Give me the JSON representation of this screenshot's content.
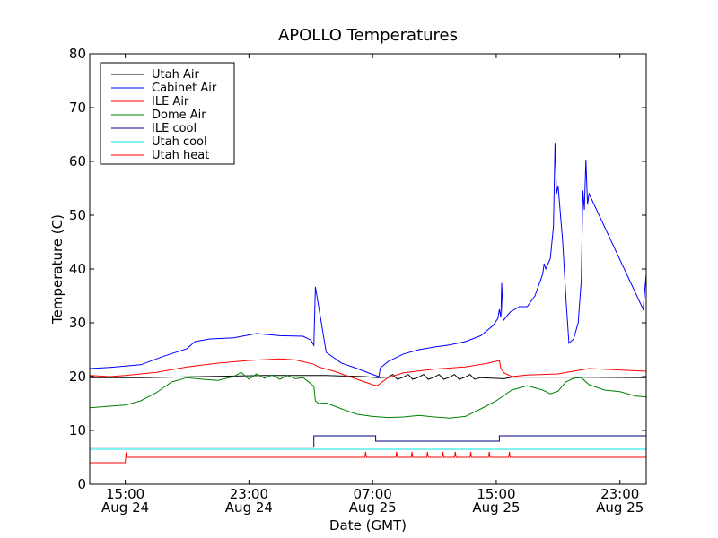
{
  "chart_data": {
    "type": "line",
    "title": "APOLLO Temperatures",
    "xlabel": "Date (GMT)",
    "ylabel": "Temperature (C)",
    "xlim": [
      12.7,
      48.7
    ],
    "ylim": [
      0,
      80
    ],
    "x_unit": "hours since 2000-08-24 00:00 GMT",
    "yticks": [
      0,
      10,
      20,
      30,
      40,
      50,
      60,
      70,
      80
    ],
    "xticks": [
      {
        "x": 15,
        "time": "15:00",
        "date": "Aug 24"
      },
      {
        "x": 23,
        "time": "23:00",
        "date": "Aug 24"
      },
      {
        "x": 31,
        "time": "07:00",
        "date": "Aug 25"
      },
      {
        "x": 39,
        "time": "15:00",
        "date": "Aug 25"
      },
      {
        "x": 47,
        "time": "23:00",
        "date": "Aug 25"
      }
    ],
    "legend_position": "top-left",
    "series": [
      {
        "name": "Utah Air",
        "color": "#000000",
        "points": [
          [
            12.7,
            19.8
          ],
          [
            16,
            19.8
          ],
          [
            20,
            20.0
          ],
          [
            24,
            20.2
          ],
          [
            28,
            20.2
          ],
          [
            30.5,
            20.0
          ],
          [
            31.3,
            19.8
          ],
          [
            32,
            19.9
          ],
          [
            32.3,
            20.4
          ],
          [
            32.6,
            19.5
          ],
          [
            33,
            19.9
          ],
          [
            33.3,
            20.4
          ],
          [
            33.6,
            19.5
          ],
          [
            34,
            19.9
          ],
          [
            34.3,
            20.4
          ],
          [
            34.6,
            19.5
          ],
          [
            35,
            19.9
          ],
          [
            35.3,
            20.4
          ],
          [
            35.6,
            19.5
          ],
          [
            36,
            19.9
          ],
          [
            36.3,
            20.4
          ],
          [
            36.6,
            19.5
          ],
          [
            37,
            19.9
          ],
          [
            37.3,
            20.4
          ],
          [
            37.6,
            19.5
          ],
          [
            38,
            19.8
          ],
          [
            39.5,
            19.6
          ],
          [
            40,
            19.9
          ],
          [
            44,
            19.9
          ],
          [
            48.7,
            19.8
          ]
        ]
      },
      {
        "name": "Cabinet Air",
        "color": "#0000ff",
        "points": [
          [
            12.7,
            21.5
          ],
          [
            14,
            21.7
          ],
          [
            16,
            22.2
          ],
          [
            17.5,
            23.8
          ],
          [
            19,
            25.2
          ],
          [
            19.5,
            26.5
          ],
          [
            20.5,
            27.0
          ],
          [
            22,
            27.2
          ],
          [
            23.5,
            28.0
          ],
          [
            25,
            27.6
          ],
          [
            26.5,
            27.5
          ],
          [
            27,
            26.8
          ],
          [
            27.2,
            25.8
          ],
          [
            27.3,
            36.7
          ],
          [
            28,
            24.5
          ],
          [
            29,
            22.5
          ],
          [
            30,
            21.5
          ],
          [
            31,
            20.4
          ],
          [
            31.4,
            20.0
          ],
          [
            31.5,
            21.6
          ],
          [
            32,
            22.8
          ],
          [
            33,
            24.2
          ],
          [
            34,
            25.0
          ],
          [
            35,
            25.5
          ],
          [
            36,
            25.9
          ],
          [
            37,
            26.5
          ],
          [
            38,
            27.6
          ],
          [
            38.8,
            29.5
          ],
          [
            39.1,
            30.8
          ],
          [
            39.2,
            32.5
          ],
          [
            39.3,
            31.0
          ],
          [
            39.35,
            37.4
          ],
          [
            39.45,
            30.4
          ],
          [
            39.9,
            32.0
          ],
          [
            40.5,
            33.0
          ],
          [
            41,
            33.0
          ],
          [
            41.5,
            35.0
          ],
          [
            42,
            39.0
          ],
          [
            42.1,
            41.0
          ],
          [
            42.2,
            40.0
          ],
          [
            42.5,
            42.0
          ],
          [
            42.7,
            48.0
          ],
          [
            42.8,
            63.3
          ],
          [
            42.9,
            54.0
          ],
          [
            43.0,
            55.5
          ],
          [
            43.3,
            45.0
          ],
          [
            43.5,
            35.0
          ],
          [
            43.7,
            26.2
          ],
          [
            44,
            27.0
          ],
          [
            44.3,
            30.0
          ],
          [
            44.5,
            38.0
          ],
          [
            44.6,
            54.6
          ],
          [
            44.7,
            51.0
          ],
          [
            44.8,
            60.3
          ],
          [
            44.9,
            52.0
          ],
          [
            45.0,
            54.0
          ],
          [
            48.5,
            32.5
          ],
          [
            48.7,
            39.0
          ]
        ]
      },
      {
        "name": "ILE Air",
        "color": "#ff0000",
        "points": [
          [
            12.7,
            20.2
          ],
          [
            14,
            20.0
          ],
          [
            15,
            20.2
          ],
          [
            17,
            20.8
          ],
          [
            19,
            21.8
          ],
          [
            21,
            22.5
          ],
          [
            23,
            23.0
          ],
          [
            25,
            23.3
          ],
          [
            26,
            23.1
          ],
          [
            27.2,
            22.3
          ],
          [
            27.5,
            21.8
          ],
          [
            28.5,
            21.0
          ],
          [
            29.5,
            20.0
          ],
          [
            31,
            18.5
          ],
          [
            31.3,
            18.3
          ],
          [
            32,
            19.8
          ],
          [
            33,
            20.7
          ],
          [
            35,
            21.4
          ],
          [
            37,
            21.8
          ],
          [
            38.5,
            22.5
          ],
          [
            39.2,
            23.0
          ],
          [
            39.3,
            21.5
          ],
          [
            39.5,
            20.7
          ],
          [
            40,
            20.0
          ],
          [
            41,
            20.3
          ],
          [
            43,
            20.5
          ],
          [
            44,
            21.0
          ],
          [
            45,
            21.5
          ],
          [
            48.7,
            21.0
          ]
        ]
      },
      {
        "name": "Dome Air",
        "color": "#008000",
        "points": [
          [
            12.7,
            14.2
          ],
          [
            14,
            14.5
          ],
          [
            15,
            14.7
          ],
          [
            16,
            15.5
          ],
          [
            17,
            17.0
          ],
          [
            18,
            19.0
          ],
          [
            19,
            19.8
          ],
          [
            20,
            19.5
          ],
          [
            21,
            19.3
          ],
          [
            22,
            20.0
          ],
          [
            22.5,
            20.8
          ],
          [
            23,
            19.5
          ],
          [
            23.5,
            20.5
          ],
          [
            24,
            19.7
          ],
          [
            24.5,
            20.3
          ],
          [
            25,
            19.5
          ],
          [
            25.5,
            20.2
          ],
          [
            26,
            19.6
          ],
          [
            26.5,
            19.8
          ],
          [
            27,
            18.7
          ],
          [
            27.2,
            18.2
          ],
          [
            27.3,
            15.5
          ],
          [
            27.5,
            15.0
          ],
          [
            28,
            15.1
          ],
          [
            29,
            14.0
          ],
          [
            30,
            13.0
          ],
          [
            31,
            12.6
          ],
          [
            32,
            12.4
          ],
          [
            33,
            12.5
          ],
          [
            34,
            12.8
          ],
          [
            35,
            12.5
          ],
          [
            36,
            12.3
          ],
          [
            37,
            12.6
          ],
          [
            38,
            14.0
          ],
          [
            39,
            15.5
          ],
          [
            40,
            17.5
          ],
          [
            41,
            18.3
          ],
          [
            42,
            17.5
          ],
          [
            42.5,
            16.8
          ],
          [
            43,
            17.3
          ],
          [
            43.5,
            19.0
          ],
          [
            44,
            19.7
          ],
          [
            44.5,
            19.8
          ],
          [
            45,
            18.5
          ],
          [
            46,
            17.5
          ],
          [
            47,
            17.2
          ],
          [
            48,
            16.4
          ],
          [
            48.7,
            16.2
          ]
        ]
      },
      {
        "name": "ILE cool",
        "color": "#000080",
        "points": [
          [
            12.7,
            6.9
          ],
          [
            27.2,
            6.9
          ],
          [
            27.2,
            9.0
          ],
          [
            31.2,
            9.0
          ],
          [
            31.2,
            8.0
          ],
          [
            39.2,
            8.0
          ],
          [
            39.2,
            9.0
          ],
          [
            48.7,
            9.0
          ]
        ]
      },
      {
        "name": "Utah cool",
        "color": "#00e5e5",
        "points": [
          [
            12.7,
            6.5
          ],
          [
            48.7,
            6.5
          ]
        ]
      },
      {
        "name": "Utah heat",
        "color": "#ff0000",
        "points": [
          [
            12.7,
            4.0
          ],
          [
            15.0,
            4.0
          ],
          [
            15.05,
            5.9
          ],
          [
            15.1,
            5.0
          ],
          [
            30.5,
            5.0
          ],
          [
            30.55,
            6.0
          ],
          [
            30.6,
            5.0
          ],
          [
            32.5,
            5.0
          ],
          [
            32.55,
            6.0
          ],
          [
            32.6,
            5.0
          ],
          [
            33.5,
            5.0
          ],
          [
            33.55,
            6.0
          ],
          [
            33.6,
            5.0
          ],
          [
            34.5,
            5.0
          ],
          [
            34.55,
            6.0
          ],
          [
            34.6,
            5.0
          ],
          [
            35.5,
            5.0
          ],
          [
            35.55,
            6.0
          ],
          [
            35.6,
            5.0
          ],
          [
            36.3,
            5.0
          ],
          [
            36.35,
            6.0
          ],
          [
            36.4,
            5.0
          ],
          [
            37.3,
            5.0
          ],
          [
            37.35,
            6.0
          ],
          [
            37.4,
            5.0
          ],
          [
            38.5,
            5.0
          ],
          [
            38.55,
            6.0
          ],
          [
            38.6,
            5.0
          ],
          [
            39.8,
            5.0
          ],
          [
            39.85,
            6.0
          ],
          [
            39.9,
            5.0
          ],
          [
            48.7,
            5.0
          ]
        ]
      }
    ]
  }
}
